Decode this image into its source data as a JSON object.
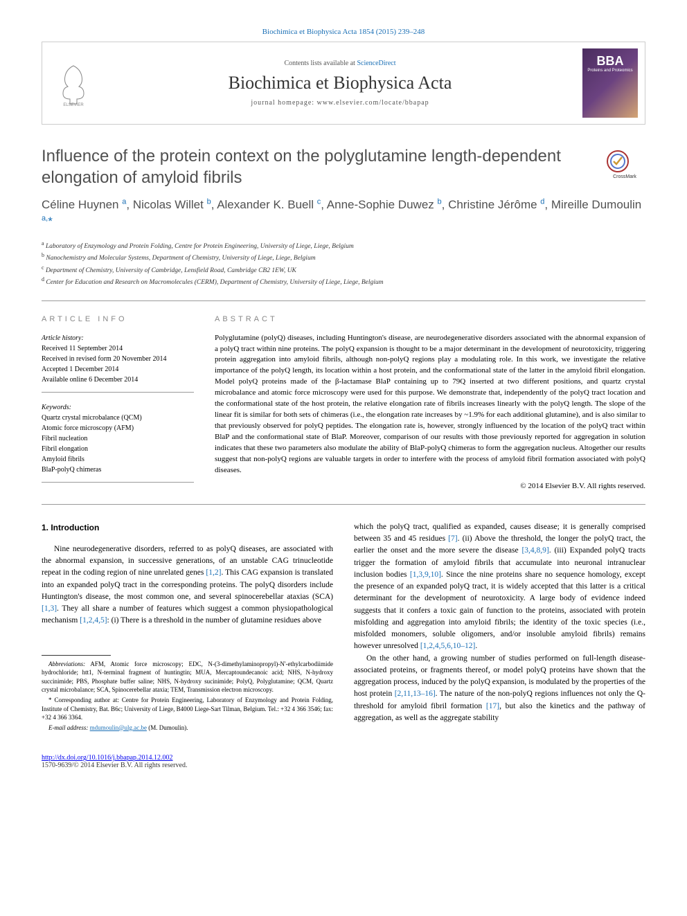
{
  "top_citation": "Biochimica et Biophysica Acta 1854 (2015) 239–248",
  "header": {
    "contents_prefix": "Contents lists available at ",
    "contents_link": "ScienceDirect",
    "journal_name": "Biochimica et Biophysica Acta",
    "homepage_prefix": "journal homepage: ",
    "homepage_url": "www.elsevier.com/locate/bbapap",
    "bba_label": "BBA",
    "bba_sub": "Proteins and Proteomics"
  },
  "title": "Influence of the protein context on the polyglutamine length-dependent elongation of amyloid fibrils",
  "crossmark_label": "CrossMark",
  "authors_html": "Céline Huynen <sup>a</sup>, Nicolas Willet <sup>b</sup>, Alexander K. Buell <sup>c</sup>, Anne-Sophie Duwez <sup>b</sup>, Christine Jérôme <sup>d</sup>, Mireille Dumoulin <sup>a,</sup>",
  "affiliations": [
    {
      "sup": "a",
      "text": "Laboratory of Enzymology and Protein Folding, Centre for Protein Engineering, University of Liege, Liege, Belgium"
    },
    {
      "sup": "b",
      "text": "Nanochemistry and Molecular Systems, Department of Chemistry, University of Liege, Liege, Belgium"
    },
    {
      "sup": "c",
      "text": "Department of Chemistry, University of Cambridge, Lensfield Road, Cambridge CB2 1EW, UK"
    },
    {
      "sup": "d",
      "text": "Center for Education and Research on Macromolecules (CERM), Department of Chemistry, University of Liege, Liege, Belgium"
    }
  ],
  "article_info": {
    "header": "ARTICLE INFO",
    "history_label": "Article history:",
    "history": [
      "Received 11 September 2014",
      "Received in revised form 20 November 2014",
      "Accepted 1 December 2014",
      "Available online 6 December 2014"
    ],
    "keywords_label": "Keywords:",
    "keywords": [
      "Quartz crystal microbalance (QCM)",
      "Atomic force microscopy (AFM)",
      "Fibril nucleation",
      "Fibril elongation",
      "Amyloid fibrils",
      "BlaP-polyQ chimeras"
    ]
  },
  "abstract": {
    "header": "ABSTRACT",
    "text": "Polyglutamine (polyQ) diseases, including Huntington's disease, are neurodegenerative disorders associated with the abnormal expansion of a polyQ tract within nine proteins. The polyQ expansion is thought to be a major determinant in the development of neurotoxicity, triggering protein aggregation into amyloid fibrils, although non-polyQ regions play a modulating role. In this work, we investigate the relative importance of the polyQ length, its location within a host protein, and the conformational state of the latter in the amyloid fibril elongation. Model polyQ proteins made of the β-lactamase BlaP containing up to 79Q inserted at two different positions, and quartz crystal microbalance and atomic force microscopy were used for this purpose. We demonstrate that, independently of the polyQ tract location and the conformational state of the host protein, the relative elongation rate of fibrils increases linearly with the polyQ length. The slope of the linear fit is similar for both sets of chimeras (i.e., the elongation rate increases by ~1.9% for each additional glutamine), and is also similar to that previously observed for polyQ peptides. The elongation rate is, however, strongly influenced by the location of the polyQ tract within BlaP and the conformational state of BlaP. Moreover, comparison of our results with those previously reported for aggregation in solution indicates that these two parameters also modulate the ability of BlaP-polyQ chimeras to form the aggregation nucleus. Altogether our results suggest that non-polyQ regions are valuable targets in order to interfere with the process of amyloid fibril formation associated with polyQ diseases.",
    "copyright": "© 2014 Elsevier B.V. All rights reserved."
  },
  "body": {
    "section_heading": "1. Introduction",
    "left_paragraphs": [
      "Nine neurodegenerative disorders, referred to as polyQ diseases, are associated with the abnormal expansion, in successive generations, of an unstable CAG trinucleotide repeat in the coding region of nine unrelated genes [1,2]. This CAG expansion is translated into an expanded polyQ tract in the corresponding proteins. The polyQ disorders include Huntington's disease, the most common one, and several spinocerebellar ataxias (SCA) [1,3]. They all share a number of features which suggest a common physiopathological mechanism [1,2,4,5]: (i) There is a threshold in the number of glutamine residues above"
    ],
    "right_paragraphs": [
      "which the polyQ tract, qualified as expanded, causes disease; it is generally comprised between 35 and 45 residues [7]. (ii) Above the threshold, the longer the polyQ tract, the earlier the onset and the more severe the disease [3,4,8,9]. (iii) Expanded polyQ tracts trigger the formation of amyloid fibrils that accumulate into neuronal intranuclear inclusion bodies [1,3,9,10]. Since the nine proteins share no sequence homology, except the presence of an expanded polyQ tract, it is widely accepted that this latter is a critical determinant for the development of neurotoxicity. A large body of evidence indeed suggests that it confers a toxic gain of function to the proteins, associated with protein misfolding and aggregation into amyloid fibrils; the identity of the toxic species (i.e., misfolded monomers, soluble oligomers, and/or insoluble amyloid fibrils) remains however unresolved [1,2,4,5,6,10–12].",
      "On the other hand, a growing number of studies performed on full-length disease-associated proteins, or fragments thereof, or model polyQ proteins have shown that the aggregation process, induced by the polyQ expansion, is modulated by the properties of the host protein [2,11,13–16]. The nature of the non-polyQ regions influences not only the Q-threshold for amyloid fibril formation [17], but also the kinetics and the pathway of aggregation, as well as the aggregate stability"
    ]
  },
  "footnotes": {
    "abbrev_label": "Abbreviations:",
    "abbrev_text": "AFM, Atomic force microscopy; EDC, N-(3-dimethylaminopropyl)-N'-ethylcarbodiimide hydrochloride; htt1, N-terminal fragment of huntingtin; MUA, Mercaptoundecanoic acid; NHS, N-hydroxy succinimide; PBS, Phosphate buffer saline; NHS, N-hydroxy sucinimide; PolyQ, Polyglutamine; QCM, Quartz crystal microbalance; SCA, Spinocerebellar ataxia; TEM, Transmission electron microscopy.",
    "corr_text": "Corresponding author at: Centre for Protein Engineering, Laboratory of Enzymology and Protein Folding, Institute of Chemistry, Bat. B6c; University of Liege, B4000 Liege-Sart Tilman, Belgium. Tel.: +32 4 366 3546; fax: +32 4 366 3364.",
    "email_label": "E-mail address:",
    "email": "mdumoulin@ulg.ac.be",
    "email_suffix": "(M. Dumoulin)."
  },
  "footer": {
    "doi": "http://dx.doi.org/10.1016/j.bbapap.2014.12.002",
    "issn_copy": "1570-9639/© 2014 Elsevier B.V. All rights reserved."
  },
  "colors": {
    "link": "#1a6fb5",
    "text": "#000000",
    "title_gray": "#505050",
    "border": "#cccccc"
  }
}
